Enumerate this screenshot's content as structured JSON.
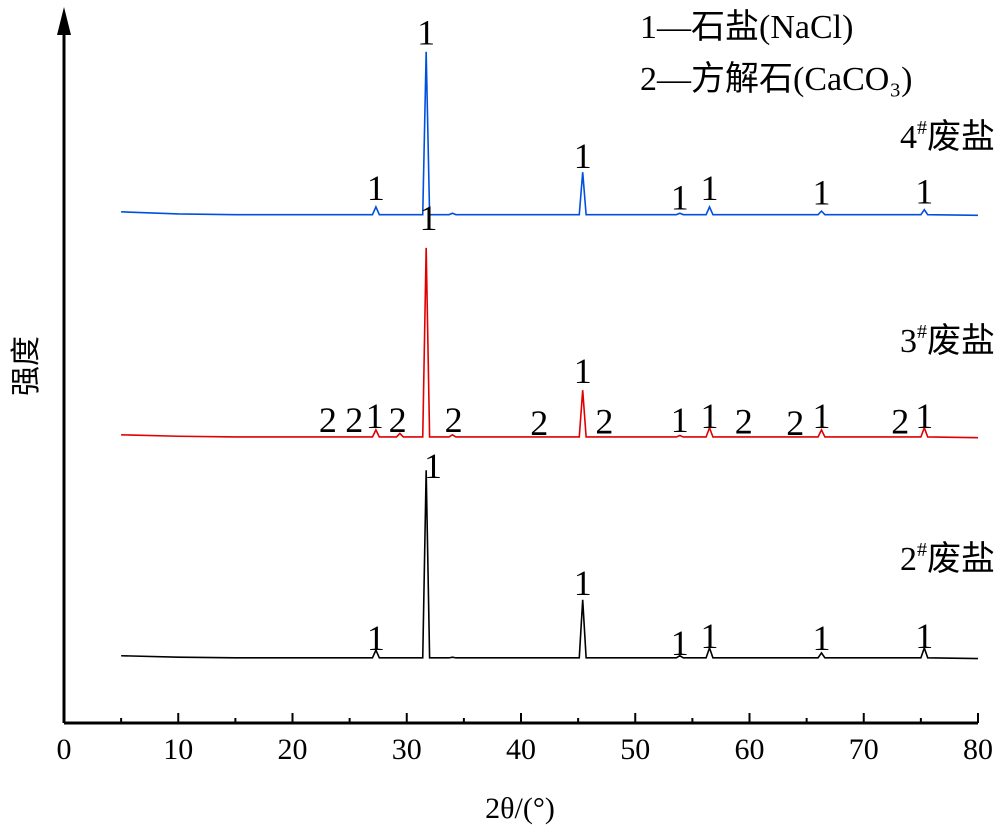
{
  "chart_data": {
    "type": "line",
    "x_label": "2θ/(°)",
    "y_label": "强度",
    "legend_lines": [
      "1—石盐(NaCl)",
      "2—方解石(CaCO₃)"
    ],
    "x": [
      5,
      10,
      15,
      20,
      25,
      27.0,
      27.3,
      27.6,
      29.1,
      29.4,
      29.7,
      31.4,
      31.7,
      32.0,
      33.7,
      34.0,
      34.3,
      40,
      45.1,
      45.4,
      45.7,
      50,
      53.6,
      53.9,
      54.2,
      56.2,
      56.5,
      56.8,
      60,
      66.0,
      66.3,
      66.6,
      70,
      75.0,
      75.3,
      75.6,
      80
    ],
    "series": [
      {
        "name": "4#废盐",
        "color": "#0050e0",
        "values": [
          72.2,
          71.9,
          71.8,
          71.8,
          71.8,
          71.8,
          72.9,
          71.8,
          71.8,
          71.8,
          71.8,
          71.8,
          94.8,
          71.8,
          71.8,
          72.0,
          71.8,
          71.8,
          71.8,
          77.8,
          71.8,
          71.8,
          71.8,
          72.0,
          71.8,
          71.8,
          72.9,
          71.8,
          71.8,
          71.8,
          72.3,
          71.8,
          71.8,
          71.8,
          72.5,
          71.8,
          71.7
        ]
      },
      {
        "name": "3#废盐",
        "color": "#e00000",
        "values": [
          40.7,
          40.5,
          40.4,
          40.4,
          40.4,
          40.4,
          41.4,
          40.4,
          40.4,
          40.9,
          40.4,
          40.4,
          67.1,
          40.4,
          40.4,
          40.7,
          40.4,
          40.4,
          40.4,
          47.0,
          40.4,
          40.4,
          40.4,
          40.6,
          40.4,
          40.4,
          41.7,
          40.4,
          40.4,
          40.4,
          41.4,
          40.4,
          40.4,
          40.4,
          41.7,
          40.4,
          40.3
        ]
      },
      {
        "name": "2#废盐",
        "color": "#000000",
        "values": [
          9.5,
          9.3,
          9.2,
          9.2,
          9.2,
          9.2,
          10.3,
          9.2,
          9.2,
          9.2,
          9.2,
          9.2,
          35.7,
          9.2,
          9.2,
          9.3,
          9.2,
          9.2,
          9.2,
          17.4,
          9.2,
          9.2,
          9.2,
          9.5,
          9.2,
          9.2,
          10.6,
          9.2,
          9.2,
          9.2,
          9.9,
          9.2,
          9.2,
          9.2,
          10.6,
          9.2,
          9.1
        ]
      }
    ],
    "annotations": [
      {
        "text": "1",
        "x": 31.7,
        "y": 95.8
      },
      {
        "text": "1",
        "x": 27.3,
        "y": 73.9
      },
      {
        "text": "1",
        "x": 45.4,
        "y": 78.4
      },
      {
        "text": "1",
        "x": 53.9,
        "y": 72.5
      },
      {
        "text": "1",
        "x": 56.5,
        "y": 73.9
      },
      {
        "text": "1",
        "x": 66.3,
        "y": 73.2
      },
      {
        "text": "1",
        "x": 75.3,
        "y": 73.4
      },
      {
        "text": "1",
        "x": 31.9,
        "y": 69.6
      },
      {
        "text": "2",
        "x": 23.1,
        "y": 41.1
      },
      {
        "text": "2",
        "x": 25.4,
        "y": 41.1
      },
      {
        "text": "1",
        "x": 27.2,
        "y": 41.7
      },
      {
        "text": "2",
        "x": 29.2,
        "y": 41.1
      },
      {
        "text": "2",
        "x": 34.1,
        "y": 41.1
      },
      {
        "text": "2",
        "x": 41.6,
        "y": 40.7
      },
      {
        "text": "1",
        "x": 45.4,
        "y": 48.0
      },
      {
        "text": "2",
        "x": 47.3,
        "y": 40.9
      },
      {
        "text": "1",
        "x": 53.9,
        "y": 41.1
      },
      {
        "text": "1",
        "x": 56.5,
        "y": 41.7
      },
      {
        "text": "2",
        "x": 59.5,
        "y": 40.9
      },
      {
        "text": "2",
        "x": 64.0,
        "y": 40.7
      },
      {
        "text": "1",
        "x": 66.3,
        "y": 41.7
      },
      {
        "text": "2",
        "x": 73.2,
        "y": 40.9
      },
      {
        "text": "1",
        "x": 75.3,
        "y": 41.7
      },
      {
        "text": "1",
        "x": 32.3,
        "y": 34.6
      },
      {
        "text": "1",
        "x": 27.3,
        "y": 10.3
      },
      {
        "text": "1",
        "x": 45.4,
        "y": 18.1
      },
      {
        "text": "1",
        "x": 53.9,
        "y": 9.6
      },
      {
        "text": "1",
        "x": 56.5,
        "y": 10.6
      },
      {
        "text": "1",
        "x": 66.3,
        "y": 10.3
      },
      {
        "text": "1",
        "x": 75.3,
        "y": 10.6
      }
    ],
    "xlim": [
      0,
      80
    ],
    "xticks": [
      0,
      10,
      20,
      30,
      40,
      50,
      60,
      70,
      80
    ],
    "ylim": [
      0,
      100
    ]
  }
}
